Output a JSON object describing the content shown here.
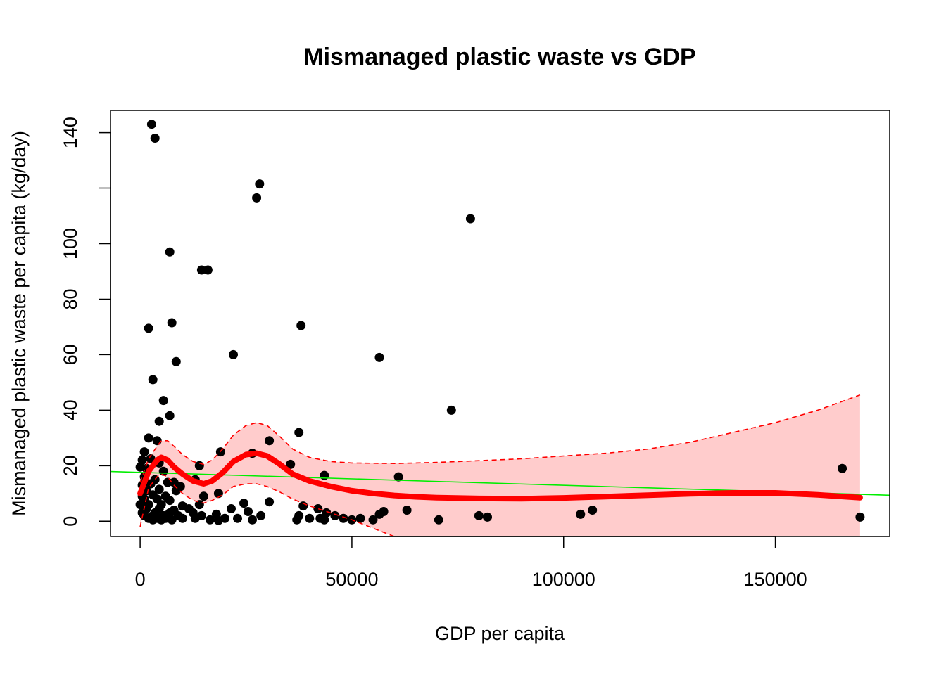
{
  "chart_data": {
    "type": "scatter",
    "title": "Mismanaged plastic waste vs GDP",
    "xlabel": "GDP per capita",
    "ylabel": "Mismanaged plastic waste per capita (kg/day)",
    "xlim": [
      -7000,
      177000
    ],
    "ylim": [
      -5.5,
      148
    ],
    "x_ticks": [
      0,
      50000,
      100000,
      150000
    ],
    "x_tick_labels": [
      "0",
      "50000",
      "100000",
      "150000"
    ],
    "y_ticks": [
      0,
      20,
      40,
      60,
      80,
      100,
      120,
      140
    ],
    "y_tick_labels": [
      "0",
      "20",
      "40",
      "60",
      "80",
      "100",
      "",
      "140"
    ],
    "grid": false,
    "legend": "none",
    "colors": {
      "points": "#000000",
      "smooth_line": "#ff0000",
      "confidence_band": "#ffcccc",
      "confidence_bounds": "#ff0000",
      "linear_fit": "#00ee00"
    },
    "points": [
      [
        2700,
        143
      ],
      [
        3500,
        138
      ],
      [
        28200,
        121.5
      ],
      [
        27500,
        116.5
      ],
      [
        78000,
        109
      ],
      [
        7000,
        97
      ],
      [
        14500,
        90.5
      ],
      [
        16000,
        90.5
      ],
      [
        7500,
        71.5
      ],
      [
        2000,
        69.5
      ],
      [
        38000,
        70.5
      ],
      [
        8500,
        57.5
      ],
      [
        22000,
        60
      ],
      [
        56500,
        59
      ],
      [
        3000,
        51
      ],
      [
        5500,
        43.5
      ],
      [
        73500,
        40
      ],
      [
        7000,
        38
      ],
      [
        4500,
        36
      ],
      [
        37500,
        32
      ],
      [
        2000,
        30
      ],
      [
        4000,
        29
      ],
      [
        30500,
        29
      ],
      [
        1000,
        25
      ],
      [
        19000,
        25
      ],
      [
        26500,
        24.5
      ],
      [
        500,
        22
      ],
      [
        2500,
        22.5
      ],
      [
        4500,
        21
      ],
      [
        35500,
        20.5
      ],
      [
        14000,
        20
      ],
      [
        165800,
        19
      ],
      [
        0,
        19.5
      ],
      [
        1500,
        19
      ],
      [
        5500,
        18
      ],
      [
        1000,
        16
      ],
      [
        61000,
        16
      ],
      [
        43500,
        16.5
      ],
      [
        3500,
        15
      ],
      [
        8000,
        14
      ],
      [
        13000,
        15
      ],
      [
        500,
        13
      ],
      [
        2500,
        13.5
      ],
      [
        6500,
        14
      ],
      [
        9500,
        12.5
      ],
      [
        1500,
        11
      ],
      [
        4500,
        11.5
      ],
      [
        8500,
        11
      ],
      [
        18500,
        10
      ],
      [
        500,
        9
      ],
      [
        3000,
        9.5
      ],
      [
        6000,
        9
      ],
      [
        15000,
        9
      ],
      [
        1000,
        8
      ],
      [
        4000,
        8
      ],
      [
        7000,
        7.5
      ],
      [
        24500,
        6.5
      ],
      [
        30500,
        7
      ],
      [
        0,
        6
      ],
      [
        2000,
        6
      ],
      [
        5000,
        6
      ],
      [
        10000,
        5.5
      ],
      [
        14000,
        6
      ],
      [
        38500,
        5.5
      ],
      [
        1500,
        4.5
      ],
      [
        4500,
        4.5
      ],
      [
        8000,
        4
      ],
      [
        11500,
        4.5
      ],
      [
        21500,
        4.5
      ],
      [
        42000,
        4.5
      ],
      [
        63000,
        4
      ],
      [
        106800,
        4
      ],
      [
        500,
        3
      ],
      [
        3500,
        3
      ],
      [
        7000,
        3
      ],
      [
        12500,
        3
      ],
      [
        25500,
        3.5
      ],
      [
        44000,
        3
      ],
      [
        57500,
        3.5
      ],
      [
        1000,
        2
      ],
      [
        3000,
        2
      ],
      [
        5500,
        2
      ],
      [
        9000,
        2
      ],
      [
        14500,
        2
      ],
      [
        18000,
        2.5
      ],
      [
        28500,
        2
      ],
      [
        37500,
        2
      ],
      [
        46000,
        2
      ],
      [
        56500,
        2.5
      ],
      [
        80000,
        2
      ],
      [
        82000,
        1.5
      ],
      [
        104000,
        2.5
      ],
      [
        170000,
        1.5
      ],
      [
        2000,
        1
      ],
      [
        4000,
        1
      ],
      [
        6000,
        1
      ],
      [
        10000,
        1
      ],
      [
        13000,
        1
      ],
      [
        20000,
        1
      ],
      [
        23000,
        1
      ],
      [
        40000,
        1
      ],
      [
        42500,
        1
      ],
      [
        48000,
        1
      ],
      [
        52000,
        1
      ],
      [
        3000,
        0.5
      ],
      [
        5000,
        0.5
      ],
      [
        7500,
        0.5
      ],
      [
        16500,
        0.5
      ],
      [
        26500,
        0.5
      ],
      [
        43500,
        0.5
      ],
      [
        50000,
        0.5
      ],
      [
        55000,
        0.5
      ],
      [
        70500,
        0.5
      ],
      [
        18500,
        0.3
      ],
      [
        37000,
        0.5
      ]
    ],
    "smooth_curve": [
      [
        0,
        10
      ],
      [
        2000,
        18
      ],
      [
        4000,
        22
      ],
      [
        5000,
        23
      ],
      [
        6500,
        22
      ],
      [
        8000,
        19.5
      ],
      [
        10000,
        17
      ],
      [
        12500,
        14.5
      ],
      [
        15000,
        13.5
      ],
      [
        17000,
        14.5
      ],
      [
        19500,
        17.5
      ],
      [
        22000,
        21.5
      ],
      [
        25000,
        24
      ],
      [
        27500,
        24.5
      ],
      [
        30000,
        23.5
      ],
      [
        33000,
        20.5
      ],
      [
        36000,
        17
      ],
      [
        40000,
        14.5
      ],
      [
        45000,
        12.5
      ],
      [
        50000,
        11
      ],
      [
        55000,
        10
      ],
      [
        60000,
        9.3
      ],
      [
        65000,
        8.8
      ],
      [
        70000,
        8.5
      ],
      [
        80000,
        8.2
      ],
      [
        90000,
        8.1
      ],
      [
        100000,
        8.4
      ],
      [
        110000,
        8.9
      ],
      [
        120000,
        9.4
      ],
      [
        130000,
        9.9
      ],
      [
        140000,
        10.2
      ],
      [
        150000,
        10.2
      ],
      [
        160000,
        9.5
      ],
      [
        170000,
        8.5
      ]
    ],
    "confidence_upper": [
      [
        0,
        14
      ],
      [
        2000,
        22.5
      ],
      [
        4000,
        27
      ],
      [
        5000,
        29
      ],
      [
        6500,
        29
      ],
      [
        8000,
        27
      ],
      [
        10000,
        24
      ],
      [
        12500,
        21.5
      ],
      [
        15000,
        20.5
      ],
      [
        17000,
        22
      ],
      [
        19500,
        26
      ],
      [
        22000,
        31
      ],
      [
        25000,
        34.5
      ],
      [
        27500,
        35.5
      ],
      [
        30000,
        34.5
      ],
      [
        33000,
        30.5
      ],
      [
        36000,
        26
      ],
      [
        40000,
        23
      ],
      [
        45000,
        21.5
      ],
      [
        50000,
        21
      ],
      [
        60000,
        20.8
      ],
      [
        70000,
        21.2
      ],
      [
        80000,
        21.8
      ],
      [
        90000,
        22.5
      ],
      [
        100000,
        23.5
      ],
      [
        110000,
        24.5
      ],
      [
        120000,
        26
      ],
      [
        130000,
        28.5
      ],
      [
        140000,
        32
      ],
      [
        150000,
        35.5
      ],
      [
        160000,
        40
      ],
      [
        170000,
        45.5
      ]
    ],
    "confidence_lower": [
      [
        0,
        -2
      ],
      [
        2000,
        12
      ],
      [
        4000,
        16
      ],
      [
        5000,
        17
      ],
      [
        6500,
        16
      ],
      [
        8000,
        13
      ],
      [
        10000,
        10
      ],
      [
        12500,
        7.5
      ],
      [
        15000,
        6.5
      ],
      [
        17000,
        7.5
      ],
      [
        19500,
        9.5
      ],
      [
        22000,
        12.5
      ],
      [
        25000,
        13.5
      ],
      [
        27500,
        13.5
      ],
      [
        30000,
        12.5
      ],
      [
        33000,
        10.5
      ],
      [
        36000,
        8
      ],
      [
        40000,
        5.5
      ],
      [
        45000,
        3
      ],
      [
        50000,
        0.5
      ],
      [
        55000,
        -2.5
      ],
      [
        60000,
        -5.5
      ]
    ],
    "linear_fit": {
      "intercept": 17.6,
      "slope": -4.65e-05
    }
  }
}
